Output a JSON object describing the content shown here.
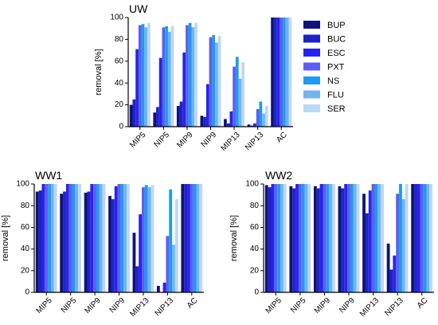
{
  "chart_data": [
    {
      "type": "bar",
      "title": "UW",
      "ylabel": "removal [%]",
      "ylim": [
        0,
        100
      ],
      "yticks": [
        "0",
        "20",
        "40",
        "60",
        "80",
        "100"
      ],
      "categories": [
        "MIP5",
        "NIP5",
        "MIP9",
        "NIP9",
        "MIP13",
        "NIP13",
        "AC"
      ],
      "series": [
        {
          "name": "BUP",
          "values": [
            20,
            13,
            19,
            10,
            7,
            2,
            100
          ]
        },
        {
          "name": "BUC",
          "values": [
            25,
            18,
            23,
            9,
            3,
            1,
            100
          ]
        },
        {
          "name": "ESC",
          "values": [
            71,
            63,
            68,
            39,
            14,
            3,
            100
          ]
        },
        {
          "name": "PXT",
          "values": [
            93,
            91,
            93,
            82,
            55,
            16,
            100
          ]
        },
        {
          "name": "NS",
          "values": [
            94,
            92,
            95,
            84,
            64,
            23,
            100
          ]
        },
        {
          "name": "FLU",
          "values": [
            91,
            87,
            91,
            77,
            44,
            12,
            100
          ]
        },
        {
          "name": "SER",
          "values": [
            95,
            92,
            95,
            83,
            59,
            19,
            100
          ]
        }
      ],
      "legend": "right"
    },
    {
      "type": "bar",
      "title": "WW1",
      "ylabel": "removal [%]",
      "ylim": [
        0,
        100
      ],
      "yticks": [
        "0",
        "20",
        "40",
        "60",
        "80",
        "100"
      ],
      "categories": [
        "MIP5",
        "NIP5",
        "MIP9",
        "NIP9",
        "MIP13",
        "NIP13",
        "AC"
      ],
      "series": [
        {
          "name": "BUP",
          "values": [
            93,
            91,
            92,
            89,
            55,
            6,
            100
          ]
        },
        {
          "name": "BUC",
          "values": [
            94,
            93,
            93,
            86,
            24,
            0,
            100
          ]
        },
        {
          "name": "ESC",
          "values": [
            100,
            100,
            100,
            98,
            72,
            9,
            100
          ]
        },
        {
          "name": "PXT",
          "values": [
            100,
            100,
            100,
            100,
            97,
            52,
            100
          ]
        },
        {
          "name": "NS",
          "values": [
            100,
            100,
            100,
            100,
            99,
            95,
            100
          ]
        },
        {
          "name": "FLU",
          "values": [
            100,
            100,
            100,
            100,
            97,
            44,
            100
          ]
        },
        {
          "name": "SER",
          "values": [
            100,
            100,
            100,
            100,
            99,
            86,
            100
          ]
        }
      ]
    },
    {
      "type": "bar",
      "title": "WW2",
      "ylabel": "removal [%]",
      "ylim": [
        0,
        100
      ],
      "yticks": [
        "0",
        "20",
        "40",
        "60",
        "80",
        "100"
      ],
      "categories": [
        "MIP5",
        "NIP5",
        "MIP9",
        "NIP9",
        "MIP13",
        "NIP13",
        "AC"
      ],
      "series": [
        {
          "name": "BUP",
          "values": [
            99,
            98,
            98,
            98,
            91,
            45,
            100
          ]
        },
        {
          "name": "BUC",
          "values": [
            97,
            96,
            96,
            96,
            73,
            21,
            100
          ]
        },
        {
          "name": "ESC",
          "values": [
            100,
            100,
            100,
            100,
            94,
            34,
            100
          ]
        },
        {
          "name": "PXT",
          "values": [
            100,
            100,
            100,
            100,
            100,
            91,
            100
          ]
        },
        {
          "name": "NS",
          "values": [
            100,
            100,
            100,
            100,
            100,
            100,
            100
          ]
        },
        {
          "name": "FLU",
          "values": [
            100,
            100,
            100,
            100,
            100,
            86,
            100
          ]
        },
        {
          "name": "SER",
          "values": [
            100,
            100,
            100,
            100,
            100,
            100,
            100
          ]
        }
      ]
    }
  ],
  "colors": {
    "BUP": "#10127a",
    "BUC": "#1f22c4",
    "ESC": "#2424f2",
    "PXT": "#5e5ef0",
    "NS": "#1e9af0",
    "FLU": "#74b3ee",
    "SER": "#bcd8f4"
  }
}
